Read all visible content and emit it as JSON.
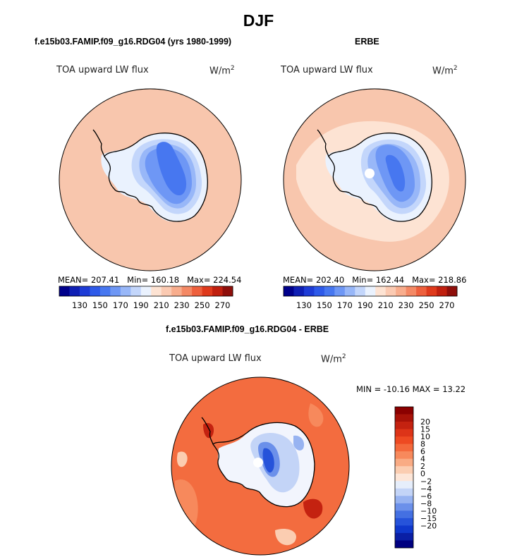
{
  "figure": {
    "title": "DJF",
    "colors": {
      "ocean_ref": "#f8c6ad",
      "ocean_light": "#fde3d3",
      "ocean_diff": "#f36c3f",
      "land_outline": "#000000"
    }
  },
  "chart_data": [
    {
      "type": "heatmap",
      "projection": "south-polar-stereographic",
      "panel_title": "f.e15b03.FAMIP.f09_g16.RDG04 (yrs 1980-1999)",
      "variable_label": "TOA upward LW flux",
      "units_label": "W/m",
      "units_exp": "2",
      "stats": {
        "mean_text": "MEAN= 207.41",
        "min_text": "Min= 160.18",
        "max_text": "Max= 224.54"
      },
      "mean": 207.41,
      "min": 160.18,
      "max": 224.54,
      "colorbar": {
        "orientation": "horizontal",
        "levels": [
          120,
          130,
          140,
          150,
          160,
          170,
          180,
          190,
          200,
          210,
          220,
          230,
          240,
          250,
          260,
          270,
          280
        ],
        "tick_labels": [
          "130",
          "150",
          "170",
          "190",
          "210",
          "230",
          "250",
          "270"
        ],
        "colors": [
          "#00008b",
          "#0f1fb4",
          "#1e3cd6",
          "#2e5ae9",
          "#4777f0",
          "#6e97f5",
          "#98b7f8",
          "#c3d6fb",
          "#eaf2fe",
          "#fde3d3",
          "#fbcab2",
          "#f8ad8d",
          "#f48965",
          "#ee603d",
          "#df3a1c",
          "#c0200f",
          "#8f0f0b"
        ]
      }
    },
    {
      "type": "heatmap",
      "projection": "south-polar-stereographic",
      "panel_title": "ERBE",
      "variable_label": "TOA upward LW flux",
      "units_label": "W/m",
      "units_exp": "2",
      "stats": {
        "mean_text": "MEAN= 202.40",
        "min_text": "Min= 162.44",
        "max_text": "Max= 218.86"
      },
      "mean": 202.4,
      "min": 162.44,
      "max": 218.86,
      "colorbar": {
        "orientation": "horizontal",
        "levels": [
          120,
          130,
          140,
          150,
          160,
          170,
          180,
          190,
          200,
          210,
          220,
          230,
          240,
          250,
          260,
          270,
          280
        ],
        "tick_labels": [
          "130",
          "150",
          "170",
          "190",
          "210",
          "230",
          "250",
          "270"
        ],
        "colors": [
          "#00008b",
          "#0f1fb4",
          "#1e3cd6",
          "#2e5ae9",
          "#4777f0",
          "#6e97f5",
          "#98b7f8",
          "#c3d6fb",
          "#eaf2fe",
          "#fde3d3",
          "#fbcab2",
          "#f8ad8d",
          "#f48965",
          "#ee603d",
          "#df3a1c",
          "#c0200f",
          "#8f0f0b"
        ]
      }
    },
    {
      "type": "heatmap",
      "projection": "south-polar-stereographic",
      "panel_title": "f.e15b03.FAMIP.f09_g16.RDG04 - ERBE",
      "variable_label": "TOA upward LW flux",
      "units_label": "W/m",
      "units_exp": "2",
      "stats": {
        "min_max_text": "MIN = -10.16 MAX =  13.22"
      },
      "min": -10.16,
      "max": 13.22,
      "colorbar": {
        "orientation": "vertical",
        "tick_labels": [
          "20",
          "15",
          "10",
          "8",
          "6",
          "4",
          "2",
          "0",
          "−2",
          "−4",
          "−6",
          "−8",
          "−10",
          "−15",
          "−20"
        ],
        "colors": [
          "#8b0000",
          "#a81208",
          "#c42210",
          "#dd3418",
          "#ee4a22",
          "#f4693c",
          "#f7895c",
          "#f9ab84",
          "#fbcdb1",
          "#fde6d8",
          "#e6eefb",
          "#c3d4f7",
          "#97b3f1",
          "#6b90ea",
          "#4470e2",
          "#2653da",
          "#0f38cc",
          "#0a1fa5",
          "#000080"
        ]
      }
    }
  ]
}
